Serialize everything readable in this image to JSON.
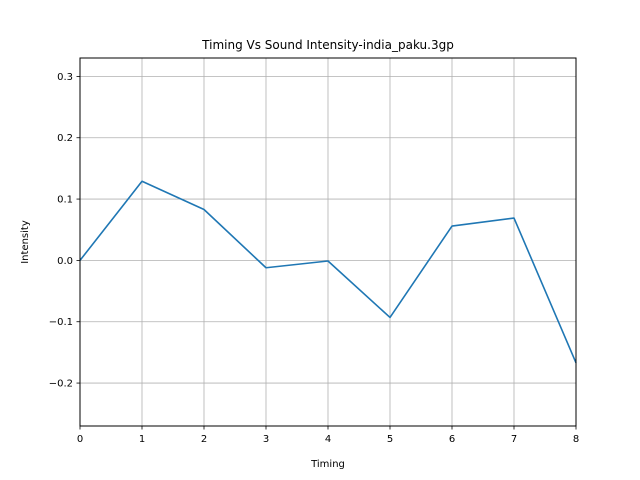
{
  "chart_data": {
    "type": "line",
    "title": "Timing Vs Sound Intensity-india_paku.3gp",
    "xlabel": "Timing",
    "ylabel": "Intensity",
    "xlim": [
      0,
      8
    ],
    "ylim": [
      -0.27,
      0.33
    ],
    "x_ticks": [
      "0",
      "1",
      "2",
      "3",
      "4",
      "5",
      "6",
      "7",
      "8"
    ],
    "y_ticks": [
      "−0.2",
      "−0.1",
      "0.0",
      "0.1",
      "0.2",
      "0.3"
    ],
    "grid": true,
    "series": [
      {
        "color": "#1f77b4",
        "x": [
          0,
          1,
          2,
          3,
          4,
          5,
          6,
          7,
          8
        ],
        "y": [
          0.0,
          0.129,
          0.083,
          -0.012,
          -0.001,
          -0.093,
          0.056,
          0.069,
          -0.167
        ]
      }
    ]
  }
}
